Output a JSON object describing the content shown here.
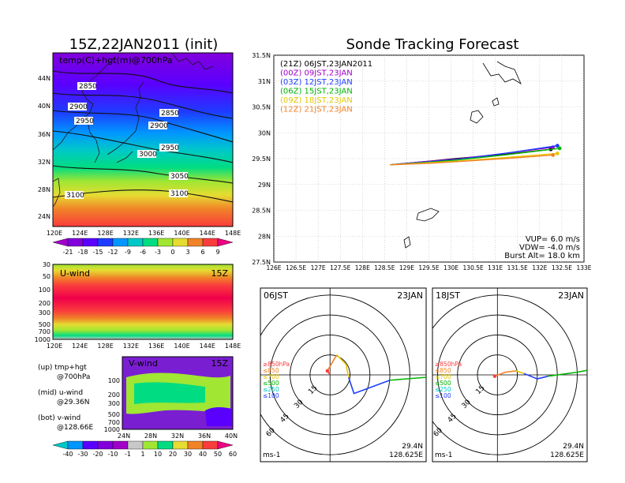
{
  "left_title": "15Z,22JAN2011 (init)",
  "right_title": "Sonde Tracking Forecast",
  "map_panel": {
    "label": "temp(C)+hgt(m)@700hPa",
    "lat_ticks": [
      "24N",
      "28N",
      "32N",
      "36N",
      "40N",
      "44N"
    ],
    "lon_ticks": [
      "120E",
      "124E",
      "128E",
      "132E",
      "136E",
      "140E",
      "144E",
      "148E"
    ],
    "contour_labels": [
      "2850",
      "2900",
      "2950",
      "3000",
      "3050",
      "3100",
      "2850",
      "2900",
      "2950",
      "3100"
    ]
  },
  "temp_colorbar": {
    "labels": [
      "-21",
      "-18",
      "-15",
      "-12",
      "-9",
      "-6",
      "-3",
      "0",
      "3",
      "6",
      "9"
    ],
    "colors": [
      "#a000c8",
      "#8200dc",
      "#5a00ff",
      "#1e3cff",
      "#0096ff",
      "#00c8c8",
      "#00dc82",
      "#a0e632",
      "#e6dc32",
      "#f08228",
      "#fa3c3c",
      "#f00082"
    ]
  },
  "uwind_panel": {
    "label": "U-wind",
    "time": "15Z",
    "p_ticks": [
      "30",
      "50",
      "100",
      "200",
      "300",
      "500",
      "700",
      "1000"
    ],
    "lon_ticks": [
      "120E",
      "124E",
      "128E",
      "132E",
      "136E",
      "140E",
      "144E",
      "148E"
    ]
  },
  "vwind_panel": {
    "label": "V-wind",
    "time": "15Z",
    "p_ticks": [
      "100",
      "200",
      "300",
      "500",
      "700",
      "1000"
    ],
    "lat_ticks": [
      "24N",
      "28N",
      "32N",
      "36N",
      "40N"
    ]
  },
  "notes": [
    {
      "line1": "(up) tmp+hgt",
      "line2": "@700hPa"
    },
    {
      "line1": "(mid) u-wind",
      "line2": "@29.36N"
    },
    {
      "line1": "(bot) v-wind",
      "line2": "@128.66E"
    }
  ],
  "wind_colorbar": {
    "labels": [
      "-40",
      "-30",
      "-20",
      "-10",
      "-1",
      "1",
      "10",
      "20",
      "30",
      "40",
      "50",
      "60"
    ],
    "colors": [
      "#00c8c8",
      "#0096ff",
      "#5a00ff",
      "#8200dc",
      "#a000c8",
      "#c8c8c8",
      "#a0e632",
      "#00dc82",
      "#e6dc32",
      "#f08228",
      "#fa3c3c",
      "#f00082"
    ]
  },
  "tracking": {
    "legend": [
      {
        "text": "(21Z) 06JST,23JAN2011",
        "color": "#000000"
      },
      {
        "text": "(00Z) 09JST,23JAN",
        "color": "#a000c8"
      },
      {
        "text": "(03Z) 12JST,23JAN",
        "color": "#1e3cff"
      },
      {
        "text": "(06Z) 15JST,23JAN",
        "color": "#00b400"
      },
      {
        "text": "(09Z) 18JST,23JAN",
        "color": "#e6c800"
      },
      {
        "text": "(12Z) 21JST,23JAN",
        "color": "#f08228"
      }
    ],
    "lat_ticks": [
      "27.5N",
      "28N",
      "28.5N",
      "29N",
      "29.5N",
      "30N",
      "30.5N",
      "31N",
      "31.5N"
    ],
    "lon_ticks": [
      "126E",
      "126.5E",
      "127E",
      "127.5E",
      "128E",
      "128.5E",
      "129E",
      "129.5E",
      "130E",
      "130.5E",
      "131E",
      "131.5E",
      "132E",
      "132.5E",
      "133E"
    ],
    "info": [
      "VUP= 6.0 m/s",
      "VDW= -4.0 m/s",
      "Burst Alt= 18.0 km"
    ]
  },
  "chart_data": [
    {
      "type": "line",
      "title": "Sonde Tracking Forecast",
      "xlabel": "",
      "ylabel": "",
      "xlim": [
        126,
        133
      ],
      "ylim": [
        27.5,
        31.5
      ],
      "series": [
        {
          "name": "(21Z) 06JST,23JAN2011",
          "x": [
            128.62,
            129.5,
            130.1,
            131.2,
            132.25
          ],
          "y": [
            29.38,
            29.45,
            29.5,
            29.58,
            29.68
          ]
        },
        {
          "name": "(00Z) 09JST,23JAN",
          "x": [
            128.62,
            129.5,
            130.1,
            131.2,
            132.3
          ],
          "y": [
            29.38,
            29.45,
            29.49,
            29.6,
            29.72
          ]
        },
        {
          "name": "(03Z) 12JST,23JAN",
          "x": [
            128.62,
            129.5,
            130.1,
            131.2,
            132.4
          ],
          "y": [
            29.38,
            29.44,
            29.48,
            29.6,
            29.75
          ]
        },
        {
          "name": "(06Z) 15JST,23JAN",
          "x": [
            128.62,
            129.5,
            130.1,
            131.2,
            132.45
          ],
          "y": [
            29.38,
            29.43,
            29.47,
            29.57,
            29.7
          ]
        },
        {
          "name": "(09Z) 18JST,23JAN",
          "x": [
            128.62,
            129.5,
            130.1,
            131.2,
            132.4
          ],
          "y": [
            29.38,
            29.42,
            29.45,
            29.52,
            29.6
          ]
        },
        {
          "name": "(12Z) 21JST,23JAN",
          "x": [
            128.62,
            129.5,
            130.1,
            131.2,
            132.3
          ],
          "y": [
            29.38,
            29.41,
            29.44,
            29.5,
            29.57
          ]
        }
      ]
    },
    {
      "type": "line",
      "title": "06JST",
      "date_label": "23JAN",
      "location": [
        "29.4N",
        "128.625E"
      ],
      "unit_label": "ms-1",
      "ring_labels": [
        "15",
        "30",
        "45",
        "60"
      ],
      "level_legend": [
        {
          "text": "≥850hPa",
          "color": "#fa3c3c"
        },
        {
          "text": "≤850",
          "color": "#f08228"
        },
        {
          "text": "≤700",
          "color": "#e6c800"
        },
        {
          "text": "≤500",
          "color": "#00b400"
        },
        {
          "text": "≤250",
          "color": "#00c8c8"
        },
        {
          "text": "≤100",
          "color": "#1e3cff"
        }
      ],
      "segments": [
        {
          "color": "#fa3c3c",
          "u": [
            0,
            -2
          ],
          "v": [
            0,
            3
          ]
        },
        {
          "color": "#f08228",
          "u": [
            -2,
            5
          ],
          "v": [
            3,
            15
          ]
        },
        {
          "color": "#e6c800",
          "u": [
            5,
            12,
            14
          ],
          "v": [
            15,
            8,
            -2
          ]
        },
        {
          "color": "#1e3cff",
          "u": [
            14,
            18,
            45
          ],
          "v": [
            -2,
            -14,
            -4
          ]
        },
        {
          "color": "#00b400",
          "u": [
            45,
            70,
            90
          ],
          "v": [
            -4,
            -2,
            -1
          ]
        },
        {
          "color": "#00c8c8",
          "u": [
            90,
            100
          ],
          "v": [
            -1,
            0
          ]
        }
      ]
    },
    {
      "type": "line",
      "title": "18JST",
      "date_label": "23JAN",
      "location": [
        "29.4N",
        "128.625E"
      ],
      "unit_label": "ms-1",
      "ring_labels": [
        "15",
        "30",
        "45",
        "60"
      ],
      "level_legend": [
        {
          "text": "≥850hPa",
          "color": "#fa3c3c"
        },
        {
          "text": "≤850",
          "color": "#f08228"
        },
        {
          "text": "≤700",
          "color": "#e6c800"
        },
        {
          "text": "≤500",
          "color": "#00b400"
        },
        {
          "text": "≤250",
          "color": "#00c8c8"
        },
        {
          "text": "≤100",
          "color": "#1e3cff"
        }
      ],
      "segments": [
        {
          "color": "#fa3c3c",
          "u": [
            0,
            -2
          ],
          "v": [
            0,
            -1
          ]
        },
        {
          "color": "#f08228",
          "u": [
            -2,
            6,
            14
          ],
          "v": [
            -1,
            2,
            3
          ]
        },
        {
          "color": "#e6c800",
          "u": [
            14,
            20
          ],
          "v": [
            3,
            1
          ]
        },
        {
          "color": "#1e3cff",
          "u": [
            20,
            30,
            38
          ],
          "v": [
            1,
            -3,
            -1
          ]
        },
        {
          "color": "#00b400",
          "u": [
            38,
            60,
            80
          ],
          "v": [
            -1,
            2,
            6
          ]
        },
        {
          "color": "#00c8c8",
          "u": [
            80,
            100
          ],
          "v": [
            6,
            9
          ]
        }
      ]
    }
  ]
}
